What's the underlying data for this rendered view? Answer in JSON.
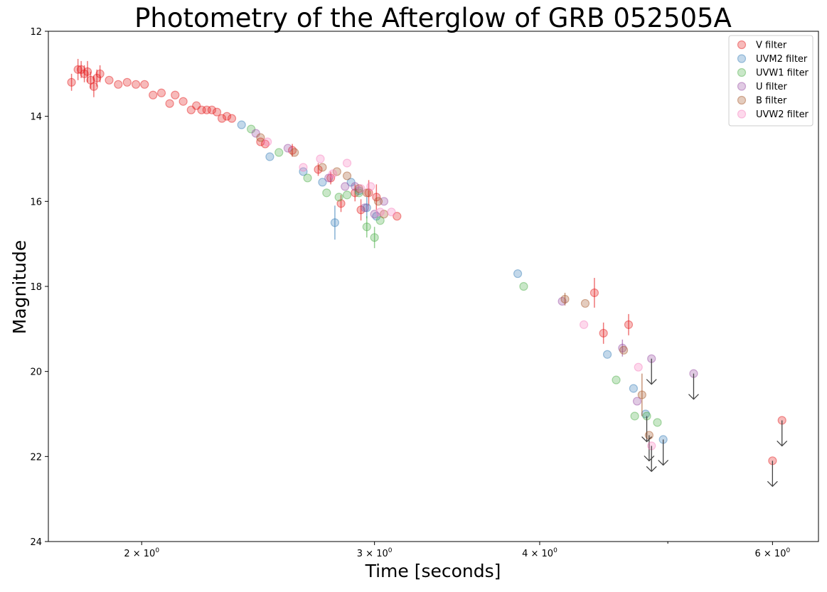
{
  "chart_data": {
    "type": "scatter",
    "title": "Photometry of the Afterglow of GRB 052505A",
    "xlabel": "Time [seconds]",
    "ylabel": "Magnitude",
    "x_scale": "log",
    "y_inverted": true,
    "xlim": [
      1.7,
      6.5
    ],
    "ylim": [
      12,
      24
    ],
    "x_ticks": [
      {
        "value": 2,
        "label": "2 × 10",
        "exp": "0"
      },
      {
        "value": 3,
        "label": "3 × 10",
        "exp": "0"
      },
      {
        "value": 4,
        "label": "4 × 10",
        "exp": "0"
      },
      {
        "value": 6,
        "label": "6 × 10",
        "exp": "0"
      }
    ],
    "x_minor_ticks": [
      5
    ],
    "y_ticks": [
      12,
      14,
      16,
      18,
      20,
      22,
      24
    ],
    "legend_position": "top-right",
    "series": [
      {
        "name": "V filter",
        "color": "#e41a1c",
        "points": [
          [
            1.77,
            13.2,
            0.2
          ],
          [
            1.79,
            12.9,
            0.25
          ],
          [
            1.8,
            12.9,
            0.2
          ],
          [
            1.81,
            13.0,
            0.2
          ],
          [
            1.82,
            12.95,
            0.25
          ],
          [
            1.83,
            13.15,
            0.2
          ],
          [
            1.84,
            13.3,
            0.25
          ],
          [
            1.85,
            13.1,
            0.2
          ],
          [
            1.86,
            13.0,
            0.2
          ],
          [
            1.89,
            13.15,
            0
          ],
          [
            1.92,
            13.25,
            0
          ],
          [
            1.95,
            13.2,
            0
          ],
          [
            1.98,
            13.25,
            0
          ],
          [
            2.01,
            13.25,
            0
          ],
          [
            2.04,
            13.5,
            0
          ],
          [
            2.07,
            13.45,
            0
          ],
          [
            2.1,
            13.7,
            0
          ],
          [
            2.12,
            13.5,
            0
          ],
          [
            2.15,
            13.65,
            0
          ],
          [
            2.18,
            13.85,
            0
          ],
          [
            2.2,
            13.75,
            0
          ],
          [
            2.22,
            13.85,
            0
          ],
          [
            2.24,
            13.85,
            0
          ],
          [
            2.26,
            13.85,
            0
          ],
          [
            2.28,
            13.9,
            0
          ],
          [
            2.3,
            14.05,
            0
          ],
          [
            2.32,
            14.0,
            0
          ],
          [
            2.34,
            14.05,
            0
          ],
          [
            2.46,
            14.6,
            0
          ],
          [
            2.48,
            14.65,
            0
          ],
          [
            2.6,
            14.8,
            0.15
          ],
          [
            2.72,
            15.25,
            0.15
          ],
          [
            2.78,
            15.45,
            0.15
          ],
          [
            2.83,
            16.05,
            0.2
          ],
          [
            2.9,
            15.8,
            0.2
          ],
          [
            2.93,
            16.2,
            0.25
          ],
          [
            2.97,
            15.8,
            0.3
          ],
          [
            3.01,
            15.9,
            0.3
          ],
          [
            3.12,
            16.35,
            0
          ],
          [
            4.4,
            18.15,
            0.35
          ],
          [
            4.47,
            19.1,
            0.25
          ],
          [
            4.67,
            18.9,
            0.25
          ],
          [
            6.0,
            22.1,
            0
          ],
          [
            6.1,
            21.15,
            0
          ]
        ],
        "upper_limits": [
          6.0,
          6.1
        ]
      },
      {
        "name": "UVM2 filter",
        "color": "#377eb8",
        "points": [
          [
            2.38,
            14.2,
            0
          ],
          [
            2.5,
            14.95,
            0
          ],
          [
            2.65,
            15.3,
            0
          ],
          [
            2.74,
            15.55,
            0
          ],
          [
            2.8,
            16.5,
            0.4
          ],
          [
            2.88,
            15.55,
            0
          ],
          [
            2.92,
            15.75,
            0
          ],
          [
            2.96,
            16.15,
            0.25
          ],
          [
            3.01,
            16.35,
            0
          ],
          [
            3.85,
            17.7,
            0
          ],
          [
            4.5,
            19.6,
            0
          ],
          [
            4.71,
            20.4,
            0
          ],
          [
            4.81,
            21.0,
            0
          ],
          [
            4.96,
            21.6,
            0
          ]
        ],
        "upper_limits": [
          4.96
        ]
      },
      {
        "name": "UVW1 filter",
        "color": "#4daf4a",
        "points": [
          [
            2.42,
            14.3,
            0
          ],
          [
            2.54,
            14.85,
            0
          ],
          [
            2.67,
            15.45,
            0
          ],
          [
            2.76,
            15.8,
            0
          ],
          [
            2.82,
            15.9,
            0
          ],
          [
            2.86,
            15.85,
            0
          ],
          [
            2.92,
            15.8,
            0
          ],
          [
            2.96,
            16.6,
            0.25
          ],
          [
            3.0,
            16.85,
            0.25
          ],
          [
            3.03,
            16.45,
            0
          ],
          [
            3.89,
            18.0,
            0
          ],
          [
            4.57,
            20.2,
            0
          ],
          [
            4.72,
            21.05,
            0
          ],
          [
            4.82,
            21.05,
            0
          ],
          [
            4.91,
            21.2,
            0
          ]
        ],
        "upper_limits": [
          4.82
        ]
      },
      {
        "name": "U filter",
        "color": "#984ea3",
        "points": [
          [
            2.44,
            14.4,
            0
          ],
          [
            2.58,
            14.75,
            0
          ],
          [
            2.77,
            15.45,
            0
          ],
          [
            2.85,
            15.65,
            0
          ],
          [
            2.9,
            15.65,
            0
          ],
          [
            2.95,
            16.15,
            0
          ],
          [
            3.0,
            16.3,
            0
          ],
          [
            3.05,
            16.0,
            0
          ],
          [
            4.16,
            18.35,
            0
          ],
          [
            4.62,
            19.45,
            0.2
          ],
          [
            4.74,
            20.7,
            0
          ],
          [
            4.86,
            19.7,
            0
          ],
          [
            5.23,
            20.05,
            0
          ]
        ],
        "upper_limits": [
          4.86,
          5.23
        ]
      },
      {
        "name": "B filter",
        "color": "#a65628",
        "points": [
          [
            2.46,
            14.5,
            0
          ],
          [
            2.61,
            14.85,
            0
          ],
          [
            2.74,
            15.2,
            0
          ],
          [
            2.81,
            15.3,
            0
          ],
          [
            2.86,
            15.4,
            0
          ],
          [
            2.92,
            15.7,
            0
          ],
          [
            2.96,
            15.8,
            0
          ],
          [
            3.02,
            16.0,
            0
          ],
          [
            3.05,
            16.3,
            0
          ],
          [
            4.18,
            18.3,
            0.15
          ],
          [
            4.33,
            18.4,
            0
          ],
          [
            4.63,
            19.5,
            0
          ],
          [
            4.78,
            20.55,
            0.5
          ],
          [
            4.84,
            21.5,
            0
          ]
        ],
        "upper_limits": [
          4.84
        ]
      },
      {
        "name": "UVW2 filter",
        "color": "#f781bf",
        "points": [
          [
            2.49,
            14.6,
            0
          ],
          [
            2.65,
            15.2,
            0
          ],
          [
            2.73,
            15.0,
            0
          ],
          [
            2.79,
            15.35,
            0
          ],
          [
            2.86,
            15.1,
            0
          ],
          [
            2.93,
            15.7,
            0
          ],
          [
            2.98,
            15.65,
            0
          ],
          [
            3.03,
            16.25,
            0
          ],
          [
            3.09,
            16.25,
            0
          ],
          [
            4.32,
            18.9,
            0
          ],
          [
            4.75,
            19.9,
            0
          ],
          [
            4.86,
            21.75,
            0
          ]
        ],
        "upper_limits": [
          4.86
        ]
      }
    ]
  }
}
